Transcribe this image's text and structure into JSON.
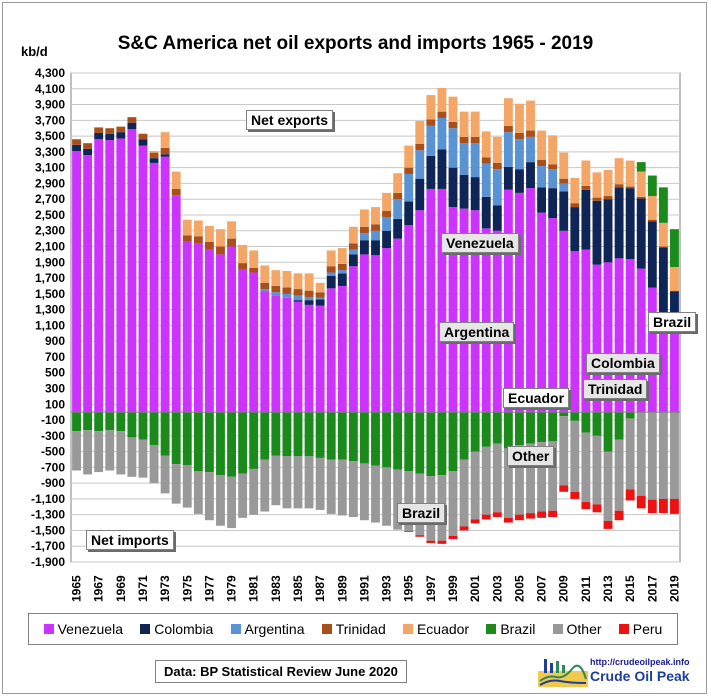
{
  "chart_data": {
    "type": "bar",
    "title": "S&C America net oil exports and imports  1965 - 2019",
    "ylabel": "kb/d",
    "ylim": [
      -1900,
      4300
    ],
    "yticks": [
      4300,
      4100,
      3900,
      3700,
      3500,
      3300,
      3100,
      2900,
      2700,
      2500,
      2300,
      2100,
      1900,
      1700,
      1500,
      1300,
      1100,
      900,
      700,
      500,
      300,
      100,
      -100,
      -300,
      -500,
      -700,
      -900,
      -1100,
      -1300,
      -1500,
      -1700,
      -1900
    ],
    "ytick_labels": [
      "4,300",
      "4,100",
      "3,900",
      "3,700",
      "3,500",
      "3,300",
      "3,100",
      "2,900",
      "2,700",
      "2,500",
      "2,300",
      "2,100",
      "1,900",
      "1,700",
      "1,500",
      "1,300",
      "1,100",
      "900",
      "700",
      "500",
      "300",
      "100",
      "-100",
      "-300",
      "-500",
      "-700",
      "-900",
      "-1,100",
      "-1,300",
      "-1,500",
      "-1,700",
      "-1,900"
    ],
    "grid": true,
    "stacked": true,
    "categories": [
      "1965",
      "1966",
      "1967",
      "1968",
      "1969",
      "1970",
      "1971",
      "1972",
      "1973",
      "1974",
      "1975",
      "1976",
      "1977",
      "1978",
      "1979",
      "1980",
      "1981",
      "1982",
      "1983",
      "1984",
      "1985",
      "1986",
      "1987",
      "1988",
      "1989",
      "1990",
      "1991",
      "1992",
      "1993",
      "1994",
      "1995",
      "1996",
      "1997",
      "1998",
      "1999",
      "2000",
      "2001",
      "2002",
      "2003",
      "2004",
      "2005",
      "2006",
      "2007",
      "2008",
      "2009",
      "2010",
      "2011",
      "2012",
      "2013",
      "2014",
      "2015",
      "2016",
      "2017",
      "2018",
      "2019"
    ],
    "xtick_labels": [
      "1965",
      "1967",
      "1969",
      "1971",
      "1973",
      "1975",
      "1977",
      "1979",
      "1981",
      "1983",
      "1985",
      "1987",
      "1989",
      "1991",
      "1993",
      "1995",
      "1997",
      "1999",
      "2001",
      "2003",
      "2005",
      "2007",
      "2009",
      "2011",
      "2013",
      "2015",
      "2017",
      "2019"
    ],
    "legend_position": "bottom",
    "series": [
      {
        "name": "Venezuela",
        "color": "#cc33ff",
        "values": [
          3310,
          3260,
          3460,
          3450,
          3470,
          3590,
          3380,
          3160,
          3240,
          2750,
          2160,
          2140,
          2060,
          2000,
          2100,
          1810,
          1770,
          1530,
          1480,
          1450,
          1400,
          1360,
          1350,
          1570,
          1600,
          1850,
          2000,
          1990,
          2080,
          2200,
          2370,
          2560,
          2830,
          2830,
          2600,
          2580,
          2560,
          2330,
          2300,
          2820,
          2780,
          2840,
          2530,
          2460,
          2300,
          2040,
          2060,
          1870,
          1900,
          1950,
          1940,
          1820,
          1580,
          1270,
          990
        ]
      },
      {
        "name": "Colombia",
        "color": "#0e2556",
        "values": [
          80,
          80,
          80,
          80,
          80,
          80,
          80,
          60,
          30,
          0,
          0,
          0,
          0,
          0,
          0,
          0,
          0,
          0,
          0,
          0,
          20,
          60,
          80,
          160,
          160,
          150,
          180,
          190,
          220,
          250,
          300,
          400,
          420,
          500,
          500,
          430,
          420,
          400,
          320,
          290,
          300,
          330,
          320,
          380,
          500,
          560,
          760,
          810,
          800,
          900,
          900,
          890,
          840,
          820,
          540
        ]
      },
      {
        "name": "Argentina",
        "color": "#5a93d4",
        "values": [
          0,
          0,
          0,
          0,
          0,
          0,
          0,
          0,
          0,
          0,
          0,
          0,
          0,
          0,
          0,
          0,
          0,
          30,
          40,
          50,
          60,
          40,
          20,
          40,
          40,
          60,
          90,
          120,
          170,
          250,
          350,
          360,
          380,
          400,
          500,
          400,
          430,
          420,
          460,
          440,
          380,
          320,
          270,
          240,
          100,
          0,
          0,
          0,
          0,
          0,
          0,
          0,
          0,
          0,
          0
        ]
      },
      {
        "name": "Trinidad",
        "color": "#a84f1c",
        "values": [
          70,
          70,
          70,
          70,
          70,
          70,
          70,
          70,
          80,
          80,
          80,
          90,
          100,
          100,
          100,
          80,
          60,
          80,
          80,
          80,
          80,
          80,
          70,
          80,
          80,
          80,
          80,
          80,
          80,
          80,
          80,
          80,
          80,
          80,
          80,
          80,
          80,
          80,
          80,
          80,
          80,
          80,
          80,
          60,
          60,
          50,
          50,
          40,
          40,
          40,
          20,
          20,
          20,
          10,
          10
        ]
      },
      {
        "name": "Ecuador",
        "color": "#f4a666",
        "values": [
          0,
          0,
          0,
          0,
          0,
          0,
          0,
          20,
          200,
          220,
          200,
          200,
          200,
          220,
          220,
          230,
          220,
          220,
          200,
          210,
          200,
          220,
          120,
          200,
          200,
          210,
          220,
          220,
          230,
          250,
          280,
          290,
          310,
          300,
          320,
          320,
          320,
          330,
          330,
          350,
          370,
          380,
          370,
          370,
          330,
          320,
          320,
          320,
          330,
          330,
          330,
          320,
          300,
          300,
          300
        ]
      },
      {
        "name": "Brazil",
        "color": "#1a8a1a",
        "values": [
          -240,
          -230,
          -240,
          -230,
          -240,
          -320,
          -350,
          -420,
          -550,
          -660,
          -670,
          -750,
          -760,
          -800,
          -820,
          -780,
          -720,
          -600,
          -550,
          -560,
          -560,
          -560,
          -580,
          -600,
          -600,
          -620,
          -650,
          -680,
          -700,
          -730,
          -750,
          -780,
          -810,
          -800,
          -750,
          -600,
          -500,
          -440,
          -400,
          -460,
          -420,
          -400,
          -380,
          -370,
          -50,
          -110,
          -260,
          -300,
          -500,
          -350,
          -80,
          120,
          260,
          450,
          480
        ]
      },
      {
        "name": "Other",
        "color": "#999999",
        "values": [
          -500,
          -560,
          -520,
          -510,
          -550,
          -500,
          -480,
          -480,
          -480,
          -500,
          -540,
          -540,
          -610,
          -640,
          -650,
          -560,
          -580,
          -660,
          -630,
          -660,
          -660,
          -660,
          -660,
          -690,
          -710,
          -710,
          -720,
          -720,
          -740,
          -760,
          -760,
          -780,
          -820,
          -830,
          -820,
          -850,
          -860,
          -860,
          -870,
          -880,
          -880,
          -880,
          -880,
          -880,
          -880,
          -900,
          -880,
          -870,
          -880,
          -900,
          -900,
          -1060,
          -1110,
          -1100,
          -1100
        ]
      },
      {
        "name": "Peru",
        "color": "#ee1111",
        "values": [
          0,
          0,
          0,
          0,
          0,
          0,
          0,
          0,
          0,
          0,
          0,
          0,
          0,
          0,
          0,
          0,
          0,
          0,
          0,
          0,
          0,
          0,
          0,
          0,
          0,
          0,
          0,
          0,
          0,
          0,
          -10,
          -20,
          -30,
          -40,
          -40,
          -50,
          -50,
          -60,
          -60,
          -60,
          -70,
          -70,
          -80,
          -80,
          -80,
          -90,
          -90,
          -100,
          -100,
          -120,
          -140,
          -160,
          -170,
          -180,
          -190
        ]
      }
    ]
  },
  "annotations": {
    "net_exports": "Net exports",
    "net_imports": "Net imports",
    "venezuela": "Venezuela",
    "argentina": "Argentina",
    "brazil_top": "Brazil",
    "colombia": "Colombia",
    "trinidad": "Trinidad",
    "ecuador": "Ecuador",
    "other": "Other",
    "brazil_bottom": "Brazil"
  },
  "footer": {
    "source": "Data: BP Statistical Review June 2020",
    "brand_url": "http://crudeoilpeak.info",
    "brand_name": "Crude Oil Peak"
  }
}
